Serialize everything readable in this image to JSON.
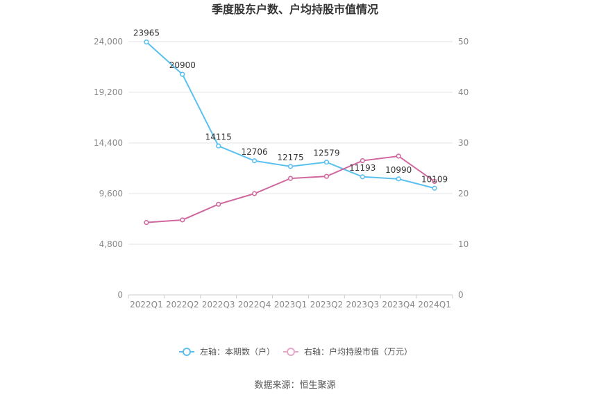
{
  "chart_data": {
    "type": "line",
    "title": "季度股东户数、户均持股市值情况",
    "categories": [
      "2022Q1",
      "2022Q2",
      "2022Q3",
      "2022Q4",
      "2023Q1",
      "2023Q2",
      "2023Q3",
      "2023Q4",
      "2024Q1"
    ],
    "series": [
      {
        "name": "左轴：本期数（户）",
        "axis": "left",
        "color": "#5bc0f0",
        "values": [
          23965,
          20900,
          14115,
          12706,
          12175,
          12579,
          11193,
          10990,
          10109
        ],
        "labels": [
          "23965",
          "20900",
          "14115",
          "12706",
          "12175",
          "12579",
          "11193",
          "10990",
          "10109"
        ]
      },
      {
        "name": "右轴：户均持股市值（万元）",
        "axis": "right",
        "color": "#d0679f",
        "values": [
          14.3,
          14.8,
          17.9,
          20.0,
          23.0,
          23.4,
          26.5,
          27.4,
          22.4
        ]
      }
    ],
    "y_left": {
      "range": [
        0,
        24000
      ],
      "ticks": [
        "0",
        "4,800",
        "9,600",
        "14,400",
        "19,200",
        "24,000"
      ],
      "tick_values": [
        0,
        4800,
        9600,
        14400,
        19200,
        24000
      ]
    },
    "y_right": {
      "range": [
        0,
        50
      ],
      "ticks": [
        "0",
        "10",
        "20",
        "30",
        "40",
        "50"
      ],
      "tick_values": [
        0,
        10,
        20,
        30,
        40,
        50
      ]
    },
    "grid": true,
    "legend_position": "bottom"
  },
  "source_text": "数据来源：恒生聚源"
}
